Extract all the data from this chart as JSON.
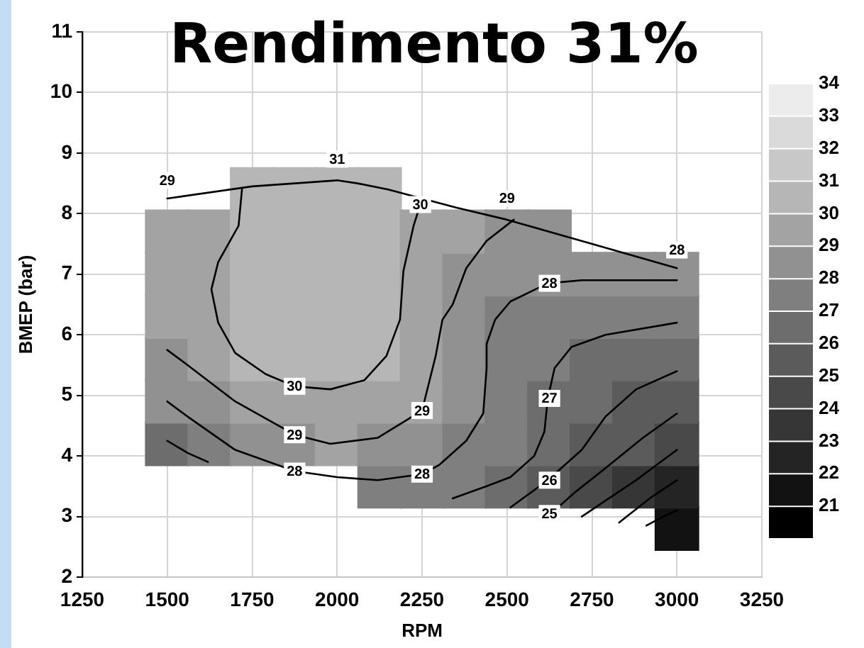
{
  "chart_data": {
    "type": "scatter",
    "title": "Rendimento 31%",
    "xlabel": "RPM",
    "ylabel": "BMEP (bar)",
    "xlim": [
      1250,
      3250
    ],
    "xticks": [
      1250,
      1500,
      1750,
      2000,
      2250,
      2500,
      2750,
      3000,
      3250
    ],
    "ylim": [
      2,
      11
    ],
    "yticks": [
      2,
      3,
      4,
      5,
      6,
      7,
      8,
      9,
      10,
      11
    ],
    "clim": [
      20,
      34
    ],
    "cticks": [
      21,
      22,
      23,
      24,
      25,
      26,
      27,
      28,
      29,
      30,
      31,
      32,
      33,
      34
    ],
    "grid": true,
    "marker": "square",
    "series": [
      {
        "x": [
          1500,
          1500,
          1500,
          1500,
          1500,
          1500,
          1625,
          1625,
          1625,
          1625,
          1625,
          1625,
          1750,
          1750,
          1750,
          1750,
          1750,
          1750,
          1750,
          1875,
          1875,
          1875,
          1875,
          1875,
          1875,
          1875,
          2000,
          2000,
          2000,
          2000,
          2000,
          2000,
          2000,
          2125,
          2125,
          2125,
          2125,
          2125,
          2125,
          2125,
          2125,
          2250,
          2250,
          2250,
          2250,
          2250,
          2250,
          2250,
          2375,
          2375,
          2375,
          2375,
          2375,
          2375,
          2375,
          2500,
          2500,
          2500,
          2500,
          2500,
          2500,
          2500,
          2625,
          2625,
          2625,
          2625,
          2625,
          2625,
          2625,
          2750,
          2750,
          2750,
          2750,
          2750,
          2750,
          2875,
          2875,
          2875,
          2875,
          2875,
          2875,
          3000,
          3000,
          3000,
          3000,
          3000,
          3000,
          3000
        ],
        "values": [
          4.2,
          4.9,
          5.6,
          6.3,
          7.0,
          7.7,
          4.2,
          4.9,
          5.6,
          6.3,
          7.0,
          7.7,
          4.2,
          4.9,
          5.6,
          6.3,
          7.0,
          7.7,
          8.4,
          4.2,
          4.9,
          5.6,
          6.3,
          7.0,
          7.7,
          8.4,
          4.2,
          4.9,
          5.6,
          6.3,
          7.0,
          7.7,
          8.4,
          3.5,
          4.2,
          4.9,
          5.6,
          6.3,
          7.0,
          7.7,
          8.4,
          3.5,
          4.2,
          4.9,
          5.6,
          6.3,
          7.0,
          7.7,
          3.5,
          4.2,
          4.9,
          5.6,
          6.3,
          7.0,
          7.7,
          3.5,
          4.2,
          4.9,
          5.6,
          6.3,
          7.0,
          7.7,
          3.5,
          4.2,
          4.9,
          5.6,
          6.3,
          7.0,
          7.7,
          3.5,
          4.2,
          4.9,
          5.6,
          6.3,
          7.0,
          3.5,
          4.2,
          4.9,
          5.6,
          6.3,
          7.0,
          2.8,
          3.5,
          4.2,
          4.9,
          5.6,
          6.3,
          7.0
        ],
        "cvalues": [
          26.9,
          28.0,
          28.8,
          29.3,
          29.5,
          29.5,
          27.7,
          28.6,
          29.4,
          29.8,
          29.8,
          29.7,
          28.3,
          29.2,
          30.1,
          30.4,
          30.5,
          30.4,
          30.1,
          28.8,
          29.7,
          30.3,
          30.6,
          30.7,
          30.7,
          30.7,
          29.0,
          29.8,
          30.3,
          30.6,
          30.7,
          30.8,
          30.9,
          27.8,
          28.9,
          29.5,
          30.1,
          30.4,
          30.5,
          30.5,
          30.6,
          27.8,
          28.5,
          29.1,
          29.4,
          29.6,
          29.7,
          29.9,
          27.2,
          27.9,
          28.3,
          28.5,
          28.7,
          28.9,
          29.3,
          26.7,
          27.2,
          27.4,
          27.6,
          27.9,
          28.4,
          28.9,
          25.8,
          26.4,
          26.9,
          27.2,
          27.7,
          28.1,
          28.5,
          24.8,
          25.8,
          26.3,
          26.8,
          27.4,
          28.1,
          23.8,
          25.0,
          25.8,
          26.5,
          27.3,
          28.1,
          21.6,
          22.8,
          24.2,
          25.1,
          26.3,
          27.2,
          28.1
        ],
        "colors": [
          "#6d6d6d",
          "#919191",
          "#919191",
          "#a3a3a3",
          "#a3a3a3",
          "#a3a3a3",
          "#7f7f7f",
          "#919191",
          "#a3a3a3",
          "#a3a3a3",
          "#a3a3a3",
          "#a3a3a3",
          "#919191",
          "#a3a3a3",
          "#b6b6b6",
          "#b6b6b6",
          "#b6b6b6",
          "#b6b6b6",
          "#b6b6b6",
          "#919191",
          "#a3a3a3",
          "#b6b6b6",
          "#b6b6b6",
          "#b6b6b6",
          "#b6b6b6",
          "#b6b6b6",
          "#a3a3a3",
          "#a3a3a3",
          "#b6b6b6",
          "#b6b6b6",
          "#b6b6b6",
          "#b6b6b6",
          "#b6b6b6",
          "#7f7f7f",
          "#919191",
          "#a3a3a3",
          "#b6b6b6",
          "#b6b6b6",
          "#b6b6b6",
          "#b6b6b6",
          "#b6b6b6",
          "#7f7f7f",
          "#919191",
          "#a3a3a3",
          "#a3a3a3",
          "#a3a3a3",
          "#a3a3a3",
          "#a3a3a3",
          "#7f7f7f",
          "#7f7f7f",
          "#919191",
          "#919191",
          "#919191",
          "#919191",
          "#a3a3a3",
          "#6d6d6d",
          "#7f7f7f",
          "#7f7f7f",
          "#7f7f7f",
          "#7f7f7f",
          "#919191",
          "#919191",
          "#5b5b5b",
          "#6d6d6d",
          "#6d6d6d",
          "#7f7f7f",
          "#7f7f7f",
          "#919191",
          "#919191",
          "#494949",
          "#5b5b5b",
          "#6d6d6d",
          "#6d6d6d",
          "#7f7f7f",
          "#919191",
          "#363636",
          "#5b5b5b",
          "#5b5b5b",
          "#6d6d6d",
          "#7f7f7f",
          "#919191",
          "#121212",
          "#242424",
          "#494949",
          "#5b5b5b",
          "#6d6d6d",
          "#7f7f7f",
          "#919191"
        ]
      },
      {
        "type": "line",
        "color": "#000000",
        "marker": "none",
        "x": [
          1720,
          1710,
          1650,
          1630,
          1650,
          1700,
          1790,
          1875,
          1980,
          2080,
          2145,
          2185,
          2195,
          2225,
          2245
        ],
        "values": [
          8.4,
          7.8,
          7.2,
          6.75,
          6.2,
          5.7,
          5.35,
          5.15,
          5.1,
          5.25,
          5.65,
          6.25,
          7.05,
          7.8,
          8.15
        ]
      },
      {
        "type": "line",
        "color": "#000000",
        "marker": "none",
        "x": [
          1500,
          1560,
          1700,
          1875,
          1980,
          2120,
          2250,
          2290,
          2310,
          2340,
          2380,
          2440,
          2520
        ],
        "values": [
          5.75,
          5.5,
          4.9,
          4.35,
          4.2,
          4.3,
          4.75,
          5.65,
          6.25,
          6.5,
          7.1,
          7.55,
          7.9
        ]
      },
      {
        "type": "line",
        "color": "#000000",
        "marker": "none",
        "x": [
          1500,
          1560,
          1700,
          1875,
          2000,
          2120,
          2250,
          2300,
          2380,
          2430,
          2440,
          2440,
          2465,
          2510,
          2620,
          2720,
          3000
        ],
        "values": [
          4.9,
          4.65,
          4.1,
          3.75,
          3.65,
          3.6,
          3.7,
          3.85,
          4.25,
          4.7,
          5.45,
          5.85,
          6.25,
          6.55,
          6.85,
          6.9,
          6.9
        ]
      },
      {
        "type": "line",
        "color": "#000000",
        "marker": "none",
        "x": [
          1500,
          1560,
          1620
        ],
        "values": [
          4.25,
          4.05,
          3.9
        ]
      },
      {
        "type": "line",
        "color": "#000000",
        "marker": "none",
        "x": [
          2340,
          2440,
          2510,
          2580,
          2610,
          2620,
          2640,
          2690,
          2790,
          3000
        ],
        "values": [
          3.3,
          3.5,
          3.65,
          4.0,
          4.4,
          4.95,
          5.45,
          5.8,
          6.0,
          6.2
        ]
      },
      {
        "type": "line",
        "color": "#000000",
        "marker": "none",
        "x": [
          2510,
          2620,
          2720,
          2790,
          2880,
          3000
        ],
        "values": [
          3.15,
          3.6,
          4.1,
          4.65,
          5.1,
          5.4
        ]
      },
      {
        "type": "line",
        "color": "#000000",
        "marker": "none",
        "x": [
          2630,
          2700,
          2790,
          2900,
          3000
        ],
        "values": [
          3.05,
          3.4,
          3.8,
          4.3,
          4.7
        ]
      },
      {
        "type": "line",
        "color": "#000000",
        "marker": "none",
        "x": [
          2720,
          2800,
          2880,
          3000
        ],
        "values": [
          3.0,
          3.3,
          3.6,
          4.1
        ]
      },
      {
        "type": "line",
        "color": "#000000",
        "marker": "none",
        "x": [
          2830,
          2920,
          3000
        ],
        "values": [
          2.9,
          3.3,
          3.6
        ]
      },
      {
        "type": "line",
        "color": "#000000",
        "marker": "none",
        "x": [
          2910,
          2960,
          3000
        ],
        "values": [
          2.85,
          3.0,
          3.1
        ]
      },
      {
        "type": "line",
        "color": "#000000",
        "marker": "none",
        "x": [
          1500,
          1750,
          2000,
          2060,
          2150,
          2350,
          2500,
          2750,
          3000
        ],
        "values": [
          8.25,
          8.45,
          8.55,
          8.5,
          8.4,
          8.1,
          7.9,
          7.5,
          7.1
        ]
      }
    ],
    "annotations": [
      {
        "text": "30",
        "x": 1875,
        "y": 5.15
      },
      {
        "text": "29",
        "x": 1875,
        "y": 4.35
      },
      {
        "text": "28",
        "x": 1875,
        "y": 3.75
      },
      {
        "text": "30",
        "x": 2245,
        "y": 8.15
      },
      {
        "text": "29",
        "x": 2250,
        "y": 4.75
      },
      {
        "text": "28",
        "x": 2250,
        "y": 3.7
      },
      {
        "text": "28",
        "x": 2625,
        "y": 6.85
      },
      {
        "text": "27",
        "x": 2625,
        "y": 4.95
      },
      {
        "text": "26",
        "x": 2625,
        "y": 3.6
      },
      {
        "text": "25",
        "x": 2625,
        "y": 3.05
      },
      {
        "text": "29",
        "x": 1500,
        "y": 8.55
      },
      {
        "text": "31",
        "x": 2000,
        "y": 8.9
      },
      {
        "text": "29",
        "x": 2500,
        "y": 8.25
      },
      {
        "text": "28",
        "x": 3000,
        "y": 7.4
      }
    ]
  }
}
